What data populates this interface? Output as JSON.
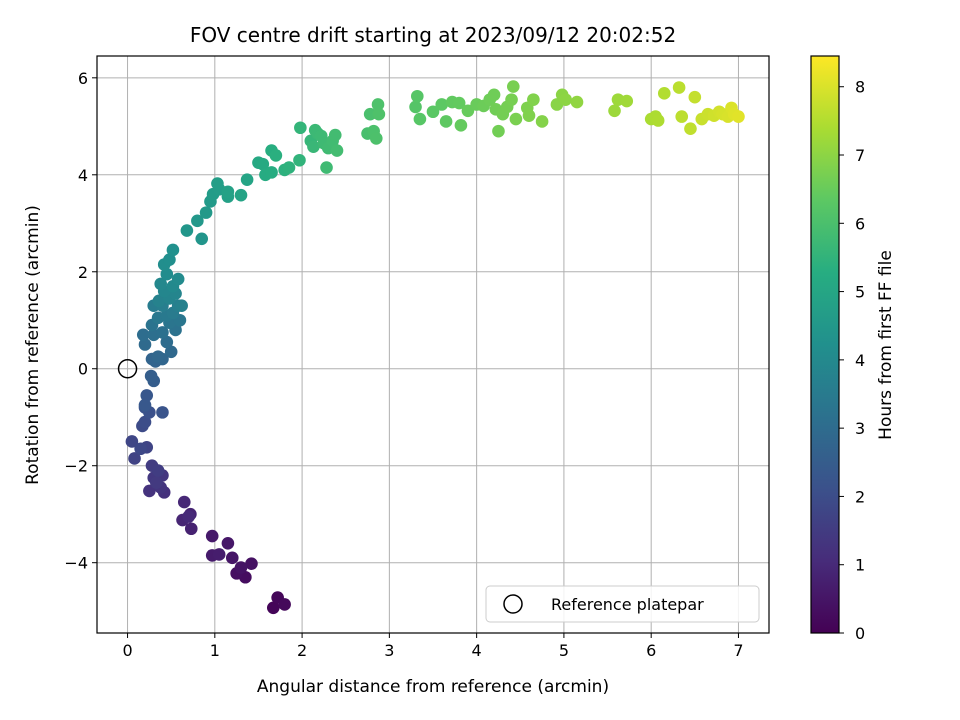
{
  "chart_data": {
    "type": "scatter",
    "title": "FOV centre drift starting at 2023/09/12 20:02:52",
    "xlabel": "Angular distance from reference (arcmin)",
    "ylabel": "Rotation from reference (arcmin)",
    "xlim": [
      -0.35,
      7.35
    ],
    "ylim": [
      -5.45,
      6.45
    ],
    "xticks": [
      0,
      1,
      2,
      3,
      4,
      5,
      6,
      7
    ],
    "yticks": [
      -4,
      -2,
      0,
      2,
      4,
      6
    ],
    "xtick_labels": [
      "0",
      "1",
      "2",
      "3",
      "4",
      "5",
      "6",
      "7"
    ],
    "ytick_labels": [
      "−4",
      "−2",
      "0",
      "2",
      "4",
      "6"
    ],
    "grid": true,
    "colormap": "viridis",
    "colorbar": {
      "label": "Hours from first FF file",
      "range": [
        0,
        8.45
      ],
      "ticks": [
        0,
        1,
        2,
        3,
        4,
        5,
        6,
        7,
        8
      ],
      "tick_labels": [
        "0",
        "1",
        "2",
        "3",
        "4",
        "5",
        "6",
        "7",
        "8"
      ]
    },
    "legend": {
      "placement": "lower-right",
      "entries": [
        "Reference platepar"
      ]
    },
    "reference_point": {
      "x": 0,
      "y": 0
    },
    "points": [
      {
        "x": 1.67,
        "y": -4.93,
        "c": 0.1
      },
      {
        "x": 1.72,
        "y": -4.72,
        "c": 0.15
      },
      {
        "x": 1.8,
        "y": -4.86,
        "c": 0.2
      },
      {
        "x": 1.35,
        "y": -4.3,
        "c": 0.3
      },
      {
        "x": 1.25,
        "y": -4.22,
        "c": 0.35
      },
      {
        "x": 1.42,
        "y": -4.02,
        "c": 0.4
      },
      {
        "x": 1.3,
        "y": -4.1,
        "c": 0.45
      },
      {
        "x": 1.2,
        "y": -3.9,
        "c": 0.5
      },
      {
        "x": 1.15,
        "y": -3.6,
        "c": 0.55
      },
      {
        "x": 0.97,
        "y": -3.45,
        "c": 0.6
      },
      {
        "x": 0.97,
        "y": -3.85,
        "c": 0.65
      },
      {
        "x": 1.05,
        "y": -3.83,
        "c": 0.7
      },
      {
        "x": 0.73,
        "y": -3.3,
        "c": 0.8
      },
      {
        "x": 0.72,
        "y": -3.0,
        "c": 0.85
      },
      {
        "x": 0.63,
        "y": -3.12,
        "c": 0.9
      },
      {
        "x": 0.65,
        "y": -2.75,
        "c": 0.95
      },
      {
        "x": 0.7,
        "y": -3.05,
        "c": 1.0
      },
      {
        "x": 0.42,
        "y": -2.55,
        "c": 1.2
      },
      {
        "x": 0.25,
        "y": -2.52,
        "c": 1.25
      },
      {
        "x": 0.38,
        "y": -2.45,
        "c": 1.3
      },
      {
        "x": 0.4,
        "y": -2.2,
        "c": 1.35
      },
      {
        "x": 0.3,
        "y": -2.25,
        "c": 1.4
      },
      {
        "x": 0.33,
        "y": -2.35,
        "c": 1.45
      },
      {
        "x": 0.28,
        "y": -2.0,
        "c": 1.5
      },
      {
        "x": 0.35,
        "y": -2.1,
        "c": 1.55
      },
      {
        "x": 0.08,
        "y": -1.85,
        "c": 1.7
      },
      {
        "x": 0.22,
        "y": -1.62,
        "c": 1.75
      },
      {
        "x": 0.05,
        "y": -1.5,
        "c": 1.8
      },
      {
        "x": 0.15,
        "y": -1.65,
        "c": 1.85
      },
      {
        "x": 0.17,
        "y": -1.18,
        "c": 1.95
      },
      {
        "x": 0.2,
        "y": -1.1,
        "c": 2.0
      },
      {
        "x": 0.25,
        "y": -0.9,
        "c": 2.1
      },
      {
        "x": 0.2,
        "y": -0.8,
        "c": 2.15
      },
      {
        "x": 0.4,
        "y": -0.9,
        "c": 2.2
      },
      {
        "x": 0.22,
        "y": -0.55,
        "c": 2.3
      },
      {
        "x": 0.2,
        "y": -0.75,
        "c": 2.35
      },
      {
        "x": 0.3,
        "y": -0.25,
        "c": 2.5
      },
      {
        "x": 0.27,
        "y": -0.15,
        "c": 2.55
      },
      {
        "x": 0.32,
        "y": 0.15,
        "c": 2.7
      },
      {
        "x": 0.28,
        "y": 0.2,
        "c": 2.75
      },
      {
        "x": 0.4,
        "y": 0.2,
        "c": 2.8
      },
      {
        "x": 0.35,
        "y": 0.25,
        "c": 2.85
      },
      {
        "x": 0.5,
        "y": 0.35,
        "c": 2.9
      },
      {
        "x": 0.2,
        "y": 0.5,
        "c": 2.95
      },
      {
        "x": 0.45,
        "y": 0.55,
        "c": 3.0
      },
      {
        "x": 0.18,
        "y": 0.7,
        "c": 3.05
      },
      {
        "x": 0.3,
        "y": 0.7,
        "c": 3.1
      },
      {
        "x": 0.4,
        "y": 0.75,
        "c": 3.15
      },
      {
        "x": 0.55,
        "y": 0.8,
        "c": 3.2
      },
      {
        "x": 0.28,
        "y": 0.9,
        "c": 3.25
      },
      {
        "x": 0.48,
        "y": 0.95,
        "c": 3.3
      },
      {
        "x": 0.6,
        "y": 1.0,
        "c": 3.35
      },
      {
        "x": 0.35,
        "y": 1.05,
        "c": 3.4
      },
      {
        "x": 0.45,
        "y": 1.1,
        "c": 3.45
      },
      {
        "x": 0.52,
        "y": 1.15,
        "c": 3.5
      },
      {
        "x": 0.3,
        "y": 1.3,
        "c": 3.55
      },
      {
        "x": 0.4,
        "y": 1.3,
        "c": 3.6
      },
      {
        "x": 0.58,
        "y": 1.3,
        "c": 3.65
      },
      {
        "x": 0.62,
        "y": 1.3,
        "c": 3.7
      },
      {
        "x": 0.36,
        "y": 1.4,
        "c": 3.75
      },
      {
        "x": 0.48,
        "y": 1.45,
        "c": 3.8
      },
      {
        "x": 0.55,
        "y": 1.55,
        "c": 3.85
      },
      {
        "x": 0.42,
        "y": 1.6,
        "c": 3.9
      },
      {
        "x": 0.38,
        "y": 1.75,
        "c": 3.95
      },
      {
        "x": 0.52,
        "y": 1.7,
        "c": 4.0
      },
      {
        "x": 0.58,
        "y": 1.85,
        "c": 4.05
      },
      {
        "x": 0.45,
        "y": 1.95,
        "c": 4.1
      },
      {
        "x": 0.42,
        "y": 2.15,
        "c": 4.15
      },
      {
        "x": 0.48,
        "y": 2.25,
        "c": 4.2
      },
      {
        "x": 0.52,
        "y": 2.45,
        "c": 4.25
      },
      {
        "x": 0.85,
        "y": 2.68,
        "c": 4.4
      },
      {
        "x": 0.68,
        "y": 2.85,
        "c": 4.45
      },
      {
        "x": 0.8,
        "y": 3.05,
        "c": 4.5
      },
      {
        "x": 0.9,
        "y": 3.22,
        "c": 4.55
      },
      {
        "x": 0.95,
        "y": 3.45,
        "c": 4.6
      },
      {
        "x": 0.98,
        "y": 3.6,
        "c": 4.65
      },
      {
        "x": 1.05,
        "y": 3.7,
        "c": 4.7
      },
      {
        "x": 1.03,
        "y": 3.82,
        "c": 4.75
      },
      {
        "x": 1.15,
        "y": 3.55,
        "c": 4.8
      },
      {
        "x": 1.15,
        "y": 3.65,
        "c": 4.85
      },
      {
        "x": 1.3,
        "y": 3.58,
        "c": 4.9
      },
      {
        "x": 1.37,
        "y": 3.9,
        "c": 4.95
      },
      {
        "x": 1.5,
        "y": 4.25,
        "c": 5.1
      },
      {
        "x": 1.55,
        "y": 4.22,
        "c": 5.15
      },
      {
        "x": 1.58,
        "y": 4.0,
        "c": 5.2
      },
      {
        "x": 1.65,
        "y": 4.05,
        "c": 5.25
      },
      {
        "x": 1.65,
        "y": 4.5,
        "c": 5.3
      },
      {
        "x": 1.7,
        "y": 4.4,
        "c": 5.35
      },
      {
        "x": 1.8,
        "y": 4.1,
        "c": 5.4
      },
      {
        "x": 1.85,
        "y": 4.15,
        "c": 5.45
      },
      {
        "x": 1.97,
        "y": 4.3,
        "c": 5.5
      },
      {
        "x": 1.98,
        "y": 4.97,
        "c": 5.55
      },
      {
        "x": 2.1,
        "y": 4.7,
        "c": 5.6
      },
      {
        "x": 2.13,
        "y": 4.58,
        "c": 5.65
      },
      {
        "x": 2.15,
        "y": 4.92,
        "c": 5.7
      },
      {
        "x": 2.18,
        "y": 4.85,
        "c": 5.72
      },
      {
        "x": 2.22,
        "y": 4.8,
        "c": 5.74
      },
      {
        "x": 2.25,
        "y": 4.65,
        "c": 5.76
      },
      {
        "x": 2.28,
        "y": 4.15,
        "c": 5.78
      },
      {
        "x": 2.3,
        "y": 4.55,
        "c": 5.8
      },
      {
        "x": 2.35,
        "y": 4.7,
        "c": 5.82
      },
      {
        "x": 2.38,
        "y": 4.82,
        "c": 5.84
      },
      {
        "x": 2.4,
        "y": 4.5,
        "c": 5.86
      },
      {
        "x": 2.75,
        "y": 4.85,
        "c": 5.95
      },
      {
        "x": 2.78,
        "y": 5.25,
        "c": 6.0
      },
      {
        "x": 2.82,
        "y": 4.9,
        "c": 6.02
      },
      {
        "x": 2.85,
        "y": 4.75,
        "c": 6.04
      },
      {
        "x": 2.87,
        "y": 5.45,
        "c": 6.06
      },
      {
        "x": 2.88,
        "y": 5.25,
        "c": 6.08
      },
      {
        "x": 3.3,
        "y": 5.4,
        "c": 6.2
      },
      {
        "x": 3.32,
        "y": 5.62,
        "c": 6.22
      },
      {
        "x": 3.35,
        "y": 5.15,
        "c": 6.24
      },
      {
        "x": 3.5,
        "y": 5.3,
        "c": 6.3
      },
      {
        "x": 3.6,
        "y": 5.45,
        "c": 6.34
      },
      {
        "x": 3.65,
        "y": 5.1,
        "c": 6.36
      },
      {
        "x": 3.72,
        "y": 5.5,
        "c": 6.4
      },
      {
        "x": 3.8,
        "y": 5.48,
        "c": 6.42
      },
      {
        "x": 3.82,
        "y": 5.02,
        "c": 6.44
      },
      {
        "x": 3.9,
        "y": 5.32,
        "c": 6.48
      },
      {
        "x": 4.0,
        "y": 5.45,
        "c": 6.52
      },
      {
        "x": 4.08,
        "y": 5.42,
        "c": 6.55
      },
      {
        "x": 4.15,
        "y": 5.55,
        "c": 6.58
      },
      {
        "x": 4.2,
        "y": 5.65,
        "c": 6.6
      },
      {
        "x": 4.22,
        "y": 5.35,
        "c": 6.62
      },
      {
        "x": 4.25,
        "y": 4.9,
        "c": 6.64
      },
      {
        "x": 4.3,
        "y": 5.25,
        "c": 6.66
      },
      {
        "x": 4.35,
        "y": 5.4,
        "c": 6.68
      },
      {
        "x": 4.4,
        "y": 5.55,
        "c": 6.7
      },
      {
        "x": 4.42,
        "y": 5.82,
        "c": 6.72
      },
      {
        "x": 4.45,
        "y": 5.15,
        "c": 6.74
      },
      {
        "x": 4.58,
        "y": 5.38,
        "c": 6.8
      },
      {
        "x": 4.6,
        "y": 5.22,
        "c": 6.82
      },
      {
        "x": 4.65,
        "y": 5.55,
        "c": 6.84
      },
      {
        "x": 4.75,
        "y": 5.1,
        "c": 6.88
      },
      {
        "x": 4.92,
        "y": 5.45,
        "c": 6.95
      },
      {
        "x": 4.98,
        "y": 5.65,
        "c": 6.98
      },
      {
        "x": 5.02,
        "y": 5.55,
        "c": 7.0
      },
      {
        "x": 5.15,
        "y": 5.5,
        "c": 7.05
      },
      {
        "x": 5.58,
        "y": 5.32,
        "c": 7.2
      },
      {
        "x": 5.62,
        "y": 5.55,
        "c": 7.22
      },
      {
        "x": 5.72,
        "y": 5.52,
        "c": 7.26
      },
      {
        "x": 6.0,
        "y": 5.15,
        "c": 7.4
      },
      {
        "x": 6.05,
        "y": 5.2,
        "c": 7.42
      },
      {
        "x": 6.08,
        "y": 5.12,
        "c": 7.44
      },
      {
        "x": 6.15,
        "y": 5.68,
        "c": 7.5
      },
      {
        "x": 6.32,
        "y": 5.8,
        "c": 7.6
      },
      {
        "x": 6.35,
        "y": 5.2,
        "c": 7.62
      },
      {
        "x": 6.45,
        "y": 4.95,
        "c": 7.68
      },
      {
        "x": 6.5,
        "y": 5.6,
        "c": 7.72
      },
      {
        "x": 6.58,
        "y": 5.15,
        "c": 7.78
      },
      {
        "x": 6.65,
        "y": 5.25,
        "c": 7.82
      },
      {
        "x": 6.72,
        "y": 5.22,
        "c": 7.86
      },
      {
        "x": 6.78,
        "y": 5.3,
        "c": 7.9
      },
      {
        "x": 6.82,
        "y": 5.25,
        "c": 7.94
      },
      {
        "x": 6.88,
        "y": 5.2,
        "c": 7.98
      },
      {
        "x": 6.92,
        "y": 5.38,
        "c": 8.02
      },
      {
        "x": 6.95,
        "y": 5.25,
        "c": 8.06
      },
      {
        "x": 7.0,
        "y": 5.2,
        "c": 8.1
      }
    ]
  }
}
